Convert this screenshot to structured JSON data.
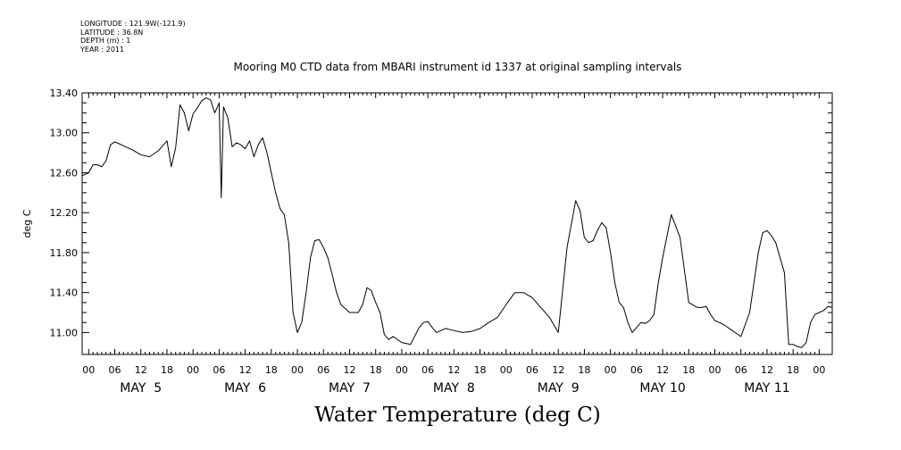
{
  "metadata": {
    "longitude": "LONGITUDE : 121.9W(-121.9)",
    "latitude": "LATITUDE : 36.8N",
    "depth": "DEPTH (m) : 1",
    "year": "YEAR : 2011"
  },
  "chart_data": {
    "type": "line",
    "title": "Mooring M0 CTD data from MBARI instrument id 1337 at original sampling intervals",
    "xlabel": "Water Temperature (deg C)",
    "ylabel": "deg C",
    "ylim": [
      10.78,
      13.4
    ],
    "yticks": [
      "13.40",
      "13.00",
      "12.60",
      "12.20",
      "11.80",
      "11.40",
      "11.00"
    ],
    "ytick_values": [
      13.4,
      13.0,
      12.6,
      12.2,
      11.8,
      11.4,
      11.0
    ],
    "xlim_hours": [
      -1.5,
      166
    ],
    "hour_tick_labels": [
      "00",
      "06",
      "12",
      "18"
    ],
    "day_labels": [
      "MAY  5",
      "MAY  6",
      "MAY  7",
      "MAY  8",
      "MAY  9",
      "MAY 10",
      "MAY 11"
    ],
    "grid": false,
    "series": [
      {
        "x": [
          -1.5,
          0,
          1,
          2,
          3,
          4,
          5,
          6,
          7,
          8,
          10,
          12,
          14,
          16,
          18,
          19,
          20,
          21,
          22,
          23,
          24,
          25,
          26,
          27,
          28,
          29,
          30,
          30.5,
          31,
          32,
          33,
          34,
          35,
          36,
          37,
          38,
          39,
          40,
          41,
          42,
          43,
          44,
          45,
          46,
          47,
          48,
          49,
          50,
          51,
          52,
          53,
          54,
          55,
          56,
          57,
          58,
          60,
          62,
          63,
          64,
          65,
          66,
          67,
          68,
          69,
          70,
          72,
          74,
          76,
          77,
          78,
          79,
          80,
          81,
          82,
          84,
          86,
          88,
          90,
          92,
          94,
          96,
          98,
          100,
          102,
          104,
          106,
          108,
          110,
          112,
          113,
          114,
          115,
          116,
          117,
          118,
          119,
          120,
          121,
          122,
          123,
          124,
          125,
          126,
          127,
          128,
          129,
          130,
          131,
          132,
          134,
          136,
          138,
          140,
          141,
          142,
          143,
          144,
          145,
          146,
          148,
          150,
          152,
          154,
          155,
          156,
          157,
          158,
          160,
          161,
          162,
          163,
          164,
          165,
          166
        ],
        "y": [
          12.57,
          12.6,
          12.68,
          12.68,
          12.66,
          12.72,
          12.88,
          12.91,
          12.89,
          12.87,
          12.83,
          12.78,
          12.76,
          12.82,
          12.92,
          12.66,
          12.85,
          13.28,
          13.2,
          13.02,
          13.19,
          13.25,
          13.32,
          13.35,
          13.33,
          13.2,
          13.3,
          12.35,
          13.26,
          13.15,
          12.86,
          12.9,
          12.88,
          12.84,
          12.92,
          12.76,
          12.88,
          12.95,
          12.8,
          12.6,
          12.4,
          12.24,
          12.18,
          11.9,
          11.2,
          11.0,
          11.1,
          11.4,
          11.75,
          11.92,
          11.93,
          11.85,
          11.75,
          11.58,
          11.4,
          11.28,
          11.2,
          11.2,
          11.28,
          11.45,
          11.42,
          11.3,
          11.2,
          10.98,
          10.93,
          10.96,
          10.9,
          10.88,
          11.05,
          11.1,
          11.11,
          11.05,
          11.0,
          11.02,
          11.04,
          11.02,
          11.0,
          11.01,
          11.04,
          11.1,
          11.15,
          11.28,
          11.4,
          11.4,
          11.35,
          11.25,
          11.15,
          11.0,
          11.85,
          12.32,
          12.22,
          11.95,
          11.9,
          11.92,
          12.02,
          12.1,
          12.05,
          11.8,
          11.5,
          11.3,
          11.25,
          11.1,
          11.0,
          11.05,
          11.1,
          11.09,
          11.12,
          11.18,
          11.5,
          11.75,
          12.18,
          11.95,
          11.3,
          11.25,
          11.25,
          11.26,
          11.18,
          11.12,
          11.1,
          11.08,
          11.02,
          10.96,
          11.2,
          11.8,
          12.0,
          12.02,
          11.97,
          11.9,
          11.6,
          10.88,
          10.88,
          10.86,
          10.85,
          10.9,
          11.1
        ],
        "end_x": [
          166,
          167,
          168,
          169,
          170,
          171
        ],
        "end_y": [
          11.1,
          11.18,
          11.2,
          11.22,
          11.26,
          11.25
        ]
      }
    ]
  }
}
